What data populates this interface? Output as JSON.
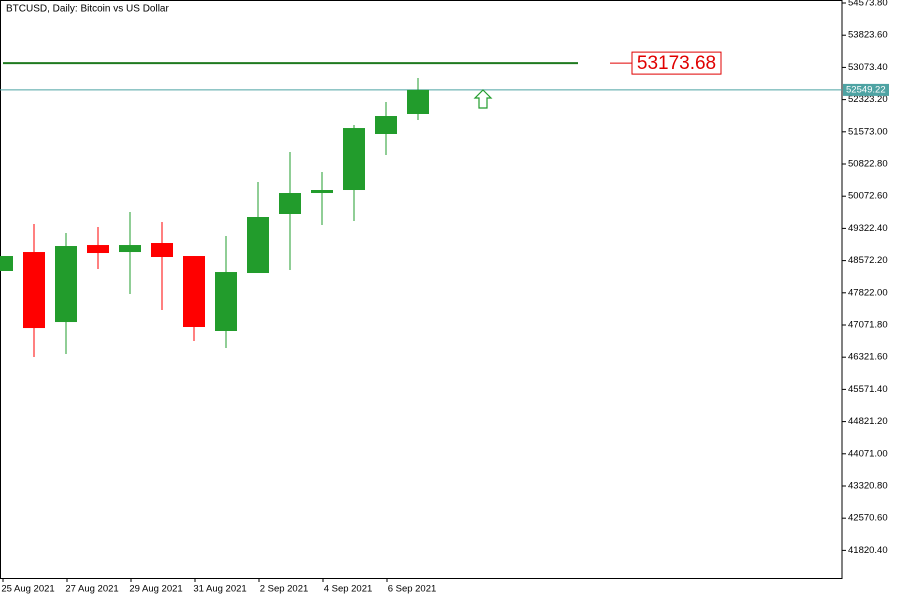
{
  "chart_data": {
    "type": "candlestick",
    "title": "BTCUSD, Daily:  Bitcoin vs US Dollar",
    "categories": [
      null,
      "25 Aug 2021",
      null,
      "27 Aug 2021",
      null,
      "29 Aug 2021",
      null,
      "31 Aug 2021",
      null,
      "2 Sep 2021",
      null,
      "4 Sep 2021",
      null,
      "6 Sep 2021"
    ],
    "open": [
      48330,
      48772,
      47141,
      48935,
      48772,
      48982,
      48679,
      46932,
      48283,
      49658,
      50147,
      50217,
      51522,
      51988
    ],
    "high": [
      48679,
      49425,
      49215,
      49355,
      49704,
      49471,
      48679,
      49145,
      50403,
      51102,
      50636,
      51731,
      52267,
      52826
    ],
    "low": [
      48330,
      46326,
      46396,
      48376,
      47794,
      47421,
      46699,
      46535,
      48283,
      48353,
      49401,
      49495,
      51032,
      51848
    ],
    "close": [
      48679,
      47001,
      48912,
      48749,
      48935,
      48656,
      47025,
      48306,
      49588,
      50147,
      50217,
      51661,
      51941,
      52549.22
    ],
    "up_color": "#229c2c",
    "down_color": "#ff0000",
    "ylim": [
      41177,
      54644
    ],
    "yticks": [
      {
        "value": 54573.8,
        "label": "54573.80"
      },
      {
        "value": 53823.6,
        "label": "53823.60"
      },
      {
        "value": 53073.4,
        "label": "53073.40"
      },
      {
        "value": 52323.2,
        "label": "52323.20"
      },
      {
        "value": 51573,
        "label": "51573.00"
      },
      {
        "value": 50822.8,
        "label": "50822.80"
      },
      {
        "value": 50072.6,
        "label": "50072.60"
      },
      {
        "value": 49322.4,
        "label": "49322.40"
      },
      {
        "value": 48572.2,
        "label": "48572.20"
      },
      {
        "value": 47822,
        "label": "47822.00"
      },
      {
        "value": 47071.8,
        "label": "47071.80"
      },
      {
        "value": 46321.6,
        "label": "46321.60"
      },
      {
        "value": 45571.4,
        "label": "45571.40"
      },
      {
        "value": 44821.2,
        "label": "44821.20"
      },
      {
        "value": 44071,
        "label": "44071.00"
      },
      {
        "value": 43320.8,
        "label": "43320.80"
      },
      {
        "value": 42570.6,
        "label": "42570.60"
      },
      {
        "value": 41820.4,
        "label": "41820.40"
      }
    ],
    "level": 53173.68,
    "level_color": "#1f7a1f",
    "last_price": 52549.22,
    "last_price_color": "#4ea3a3"
  }
}
